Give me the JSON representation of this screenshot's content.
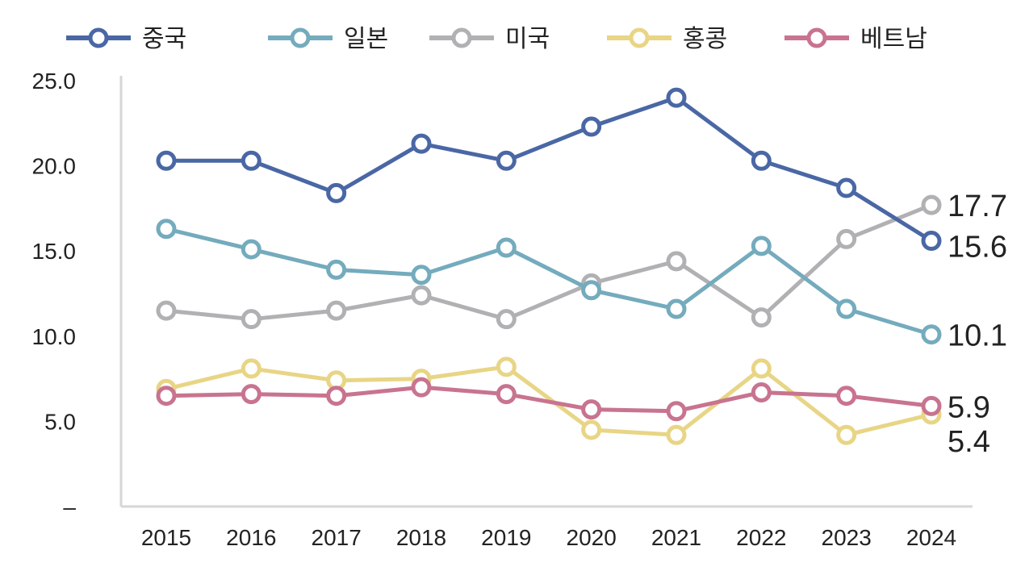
{
  "chart_data": {
    "type": "line",
    "title": "",
    "xlabel": "",
    "ylabel": "",
    "x": [
      "2015",
      "2016",
      "2017",
      "2018",
      "2019",
      "2020",
      "2021",
      "2022",
      "2023",
      "2024"
    ],
    "y_ticks": [
      "25.0",
      "20.0",
      "15.0",
      "10.0",
      "5.0",
      "–"
    ],
    "ylim": [
      0,
      25
    ],
    "grid": false,
    "legend_position": "top",
    "series": [
      {
        "name": "중국",
        "color": "#4a67a5",
        "values": [
          20.3,
          20.3,
          18.4,
          21.3,
          20.3,
          22.3,
          24.0,
          20.3,
          18.7,
          15.6
        ],
        "end_label": "15.6"
      },
      {
        "name": "일본",
        "color": "#74abbd",
        "values": [
          16.3,
          15.1,
          13.9,
          13.6,
          15.2,
          12.7,
          11.6,
          15.3,
          11.6,
          10.1
        ],
        "end_label": "10.1"
      },
      {
        "name": "미국",
        "color": "#b1b1b4",
        "values": [
          11.5,
          11.0,
          11.5,
          12.4,
          11.0,
          13.1,
          14.4,
          11.1,
          15.7,
          17.7
        ],
        "end_label": "17.7"
      },
      {
        "name": "홍콩",
        "color": "#e8d585",
        "values": [
          6.9,
          8.1,
          7.4,
          7.5,
          8.2,
          4.5,
          4.2,
          8.1,
          4.2,
          5.4
        ],
        "end_label": "5.4"
      },
      {
        "name": "베트남",
        "color": "#c8748f",
        "values": [
          6.5,
          6.6,
          6.5,
          7.0,
          6.6,
          5.7,
          5.6,
          6.7,
          6.5,
          5.9
        ],
        "end_label": "5.9"
      }
    ]
  }
}
